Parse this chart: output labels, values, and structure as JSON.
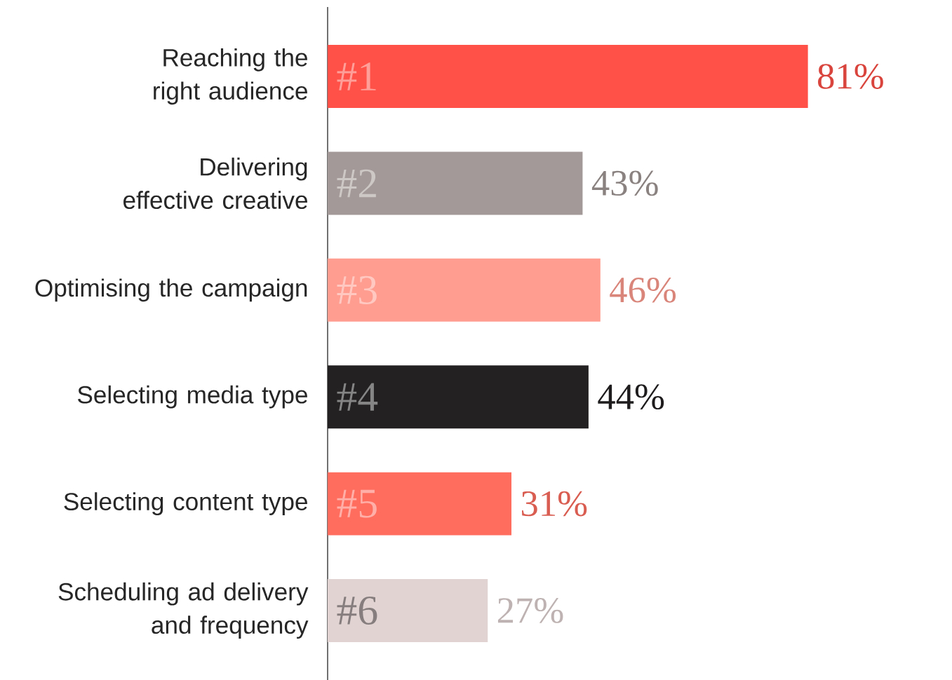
{
  "chart_data": {
    "type": "bar",
    "orientation": "horizontal",
    "categories": [
      "Reaching the right audience",
      "Delivering effective creative",
      "Optimising the campaign",
      "Selecting media type",
      "Selecting content type",
      "Scheduling ad delivery and frequency"
    ],
    "values": [
      81,
      43,
      46,
      44,
      31,
      27
    ],
    "colors": [
      "#ff5147",
      "#a39998",
      "#ff9d90",
      "#232122",
      "#ff6d5f",
      "#e0d3d2"
    ],
    "value_labels": [
      "81%",
      "43%",
      "46%",
      "44%",
      "31%",
      "27%"
    ],
    "annotations": [
      "#1",
      "#2",
      "#3",
      "#4",
      "#5",
      "#6"
    ]
  }
}
